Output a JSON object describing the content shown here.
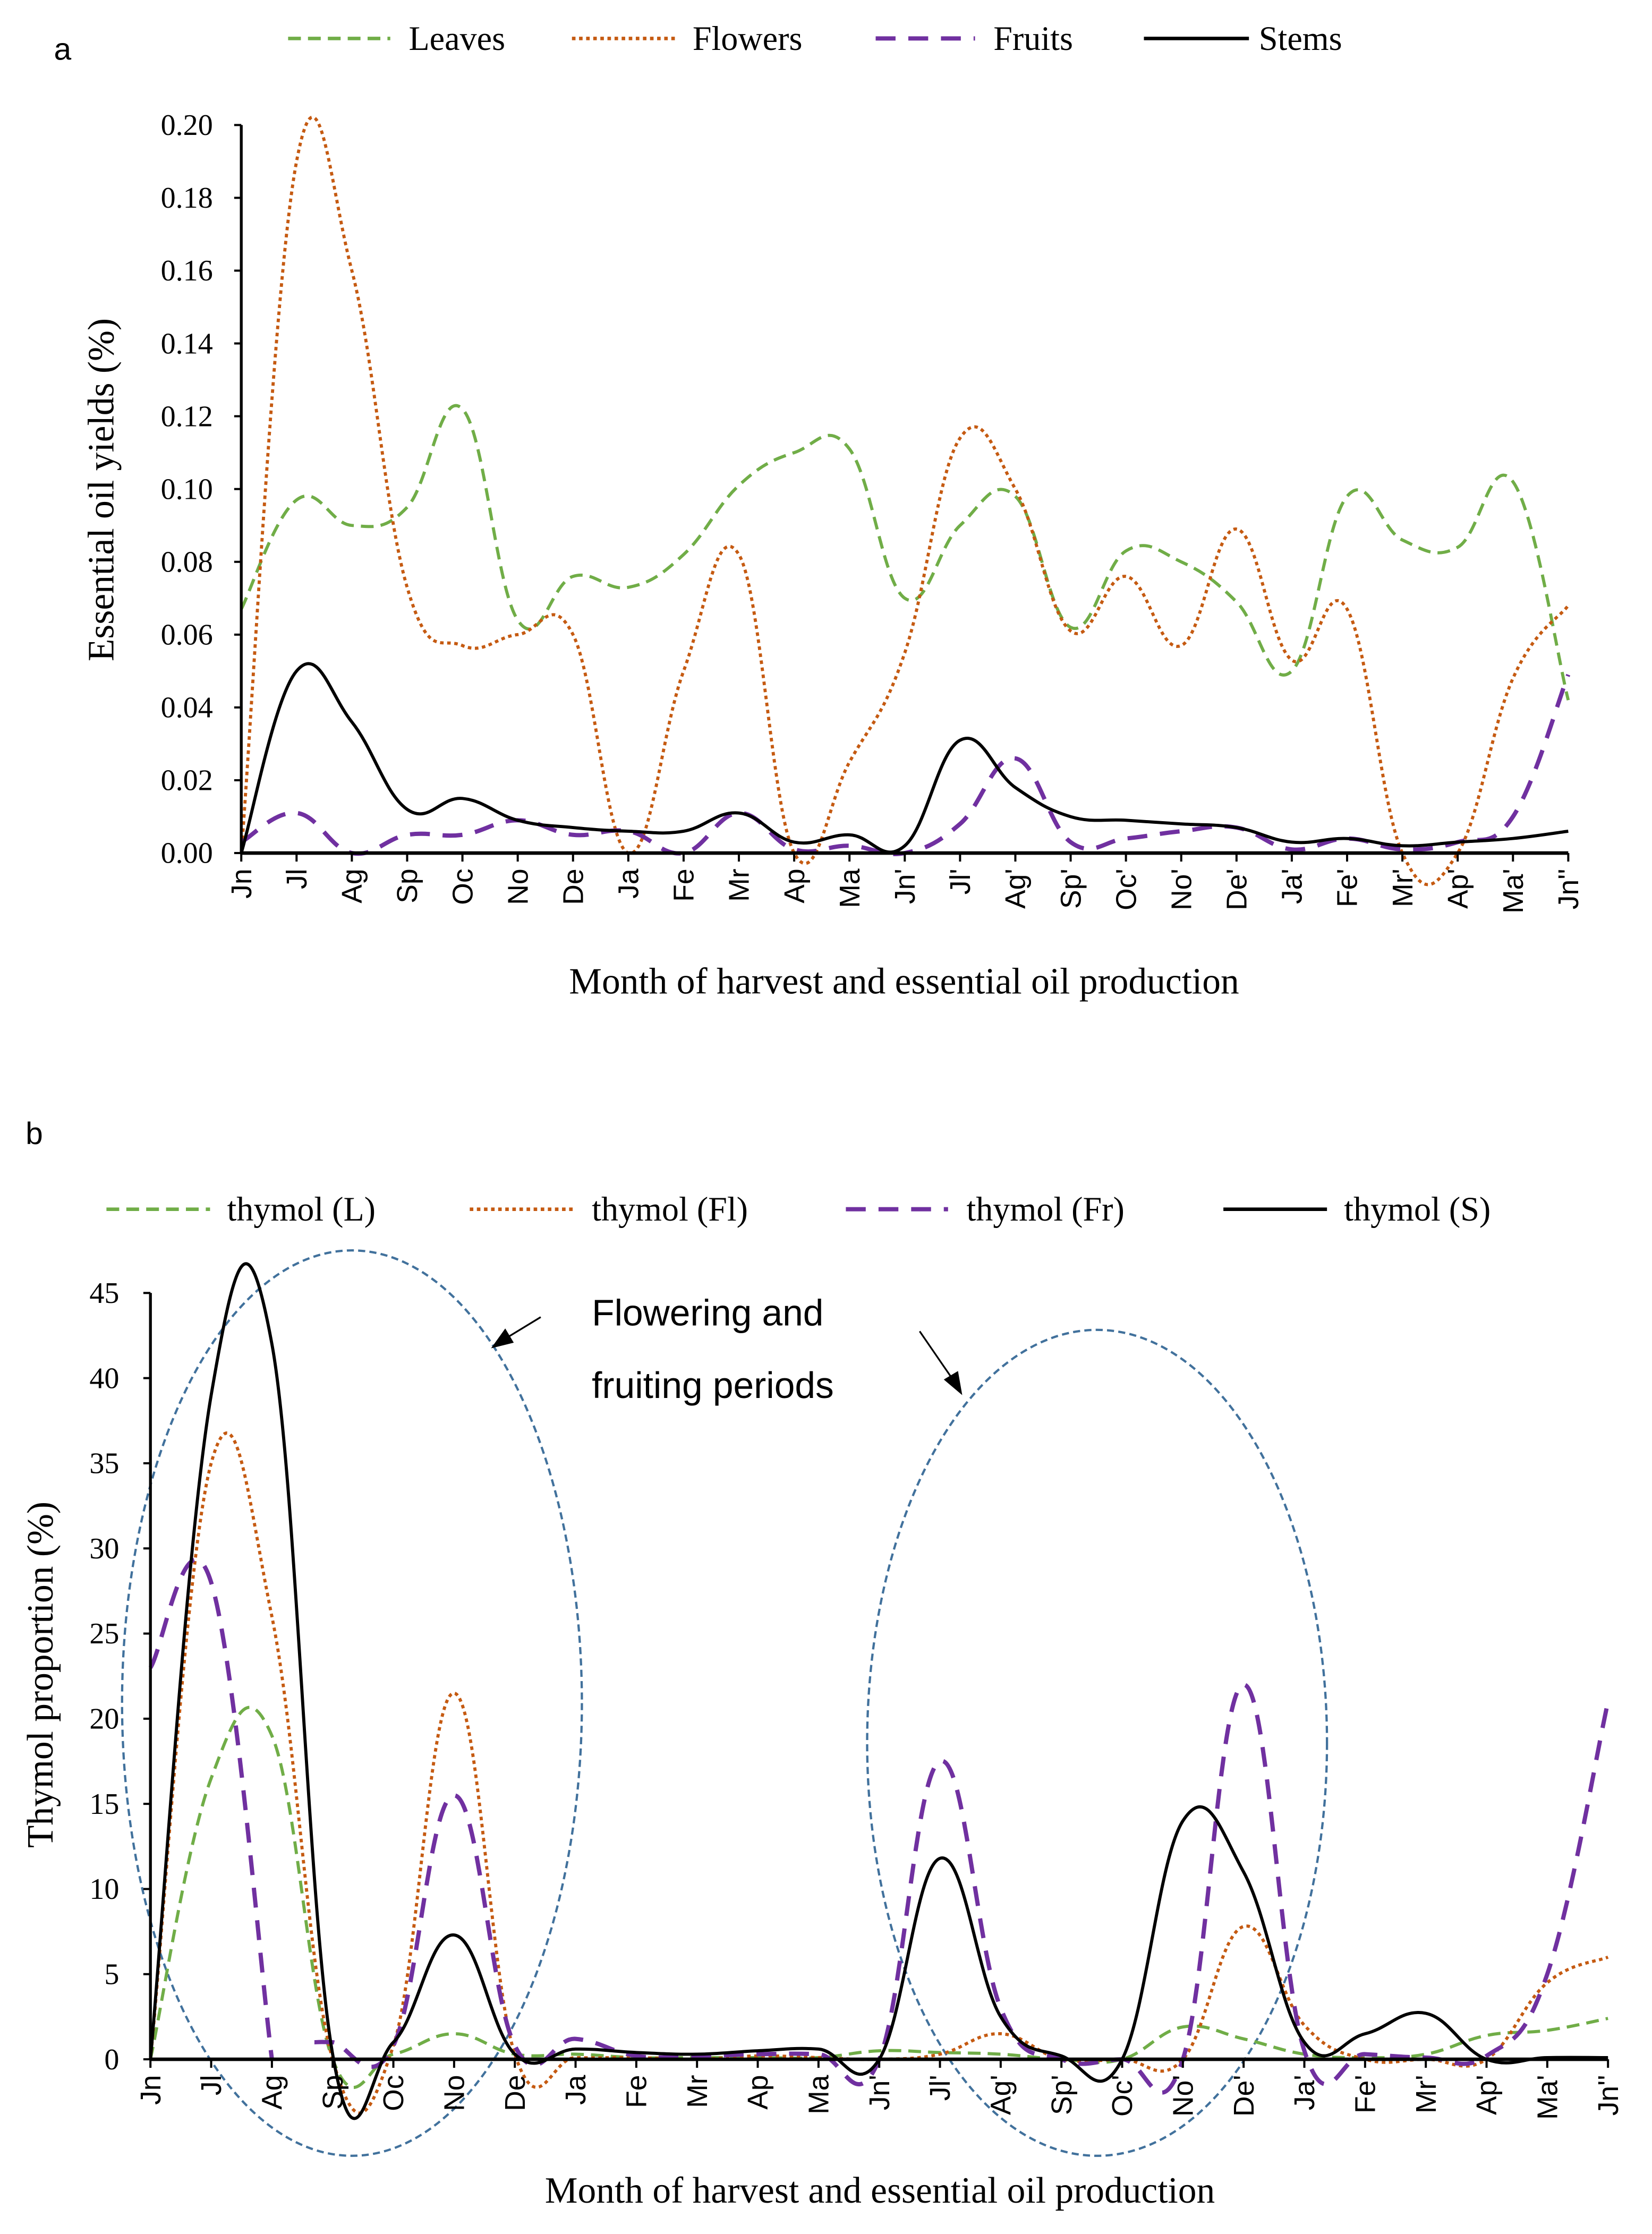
{
  "chart_data": [
    {
      "type": "line",
      "panel_label": "a",
      "title": "",
      "xlabel": "Month of harvest and essential oil production",
      "ylabel": "Essential oil yields (%)",
      "ylim": [
        0,
        0.2
      ],
      "yticks": [
        "0.00",
        "0.02",
        "0.04",
        "0.06",
        "0.08",
        "0.10",
        "0.12",
        "0.14",
        "0.16",
        "0.18",
        "0.20"
      ],
      "legend_position": "top",
      "grid": false,
      "categories": [
        "Jn",
        "Jl",
        "Ag",
        "Sp",
        "Oc",
        "No",
        "De",
        "Ja",
        "Fe",
        "Mr",
        "Ap",
        "Ma",
        "Jn'",
        "Jl'",
        "Ag'",
        "Sp'",
        "Oc'",
        "No'",
        "De'",
        "Ja'",
        "Fe'",
        "Mr'",
        "Ap'",
        "Ma'",
        "Jn''"
      ],
      "series": [
        {
          "name": "Leaves",
          "color": "#70ad47",
          "style": "dash",
          "values": [
            0.067,
            0.097,
            0.09,
            0.095,
            0.122,
            0.064,
            0.076,
            0.073,
            0.082,
            0.101,
            0.11,
            0.111,
            0.07,
            0.09,
            0.098,
            0.062,
            0.083,
            0.08,
            0.069,
            0.05,
            0.098,
            0.086,
            0.084,
            0.102,
            0.042
          ]
        },
        {
          "name": "Flowers",
          "color": "#c55a11",
          "style": "dot",
          "values": [
            0.0,
            0.19,
            0.16,
            0.073,
            0.057,
            0.06,
            0.06,
            0.0,
            0.05,
            0.082,
            0.0,
            0.025,
            0.055,
            0.114,
            0.1,
            0.061,
            0.076,
            0.057,
            0.089,
            0.053,
            0.067,
            0.0,
            0.0,
            0.048,
            0.068
          ]
        },
        {
          "name": "Fruits",
          "color": "#7030a0",
          "style": "longdash",
          "values": [
            0.003,
            0.011,
            0.0,
            0.005,
            0.005,
            0.009,
            0.005,
            0.006,
            0.0,
            0.011,
            0.001,
            0.002,
            0.0,
            0.008,
            0.026,
            0.003,
            0.004,
            0.006,
            0.007,
            0.001,
            0.004,
            0.001,
            0.003,
            0.01,
            0.049
          ]
        },
        {
          "name": "Stems",
          "color": "#000000",
          "style": "solid",
          "values": [
            0.0,
            0.05,
            0.036,
            0.012,
            0.015,
            0.009,
            0.007,
            0.006,
            0.006,
            0.011,
            0.003,
            0.005,
            0.002,
            0.031,
            0.018,
            0.01,
            0.009,
            0.008,
            0.007,
            0.003,
            0.004,
            0.002,
            0.003,
            0.004,
            0.006
          ]
        }
      ]
    },
    {
      "type": "line",
      "panel_label": "b",
      "title": "",
      "xlabel": "Month of harvest and essential oil production",
      "ylabel": "Thymol proportion (%)",
      "ylim": [
        0,
        45
      ],
      "yticks": [
        "0",
        "5",
        "10",
        "15",
        "20",
        "25",
        "30",
        "35",
        "40",
        "45"
      ],
      "legend_position": "top",
      "grid": false,
      "annotation": [
        "Flowering and",
        "fruiting periods"
      ],
      "categories": [
        "Jn",
        "Jl",
        "Ag",
        "Sp",
        "Oc",
        "No",
        "De",
        "Ja",
        "Fe",
        "Mr",
        "Ap",
        "Ma",
        "Jn'",
        "Jl'",
        "Ag'",
        "Sp'",
        "Oc'",
        "No'",
        "De'",
        "Ja'",
        "Fe'",
        "Mr'",
        "Ap'",
        "Ma'",
        "Jn''"
      ],
      "series": [
        {
          "name": "thymol (L)",
          "color": "#70ad47",
          "style": "dash",
          "values": [
            0,
            16.5,
            19,
            0,
            0.3,
            1.5,
            0.3,
            0.3,
            0.1,
            0.1,
            0.1,
            0.1,
            0.5,
            0.4,
            0.3,
            0,
            0,
            1.9,
            1.2,
            0.3,
            0.1,
            0.3,
            1.4,
            1.7,
            2.4
          ]
        },
        {
          "name": "thymol (Fl)",
          "color": "#c55a11",
          "style": "dot",
          "values": [
            0,
            35,
            26,
            0,
            0.8,
            21.5,
            0.3,
            0.1,
            0.1,
            0,
            0.2,
            0.1,
            0,
            0.3,
            1.5,
            0,
            0,
            0,
            7.8,
            2,
            0,
            0,
            0,
            4.5,
            6
          ]
        },
        {
          "name": "thymol (Fr)",
          "color": "#7030a0",
          "style": "longdash",
          "break_after": "Ag",
          "values": [
            23,
            28,
            0,
            1,
            0.8,
            15.5,
            0.8,
            1.2,
            0.2,
            0.2,
            0.3,
            0.3,
            0,
            17.5,
            3,
            0,
            0,
            0,
            22,
            0.5,
            0.3,
            0.1,
            0.2,
            5,
            21
          ]
        },
        {
          "name": "thymol (S)",
          "color": "#000000",
          "style": "solid",
          "values": [
            0,
            39,
            42,
            0.3,
            1,
            7.3,
            0.3,
            0.6,
            0.4,
            0.3,
            0.5,
            0.6,
            0,
            11.8,
            2.5,
            0.2,
            0,
            14,
            11,
            1,
            1.5,
            2.7,
            0,
            0.1,
            0.1
          ]
        }
      ]
    }
  ]
}
